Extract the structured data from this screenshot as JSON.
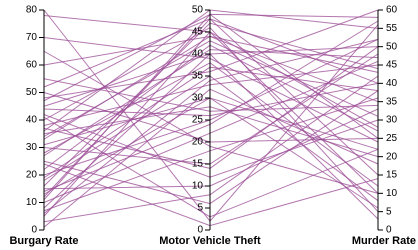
{
  "chart_data": {
    "type": "parallel",
    "color": "#9a4a94",
    "axes": [
      {
        "name": "Burgary Rate",
        "lim": [
          0,
          80
        ],
        "ticks": [
          0,
          10,
          20,
          30,
          40,
          50,
          60,
          70,
          80
        ]
      },
      {
        "name": "Motor Vehicle Theft",
        "lim": [
          0,
          50
        ],
        "ticks": [
          0,
          5,
          10,
          15,
          20,
          25,
          30,
          35,
          40,
          45,
          50
        ]
      },
      {
        "name": "Murder Rate",
        "lim": [
          0,
          60
        ],
        "ticks": [
          0,
          5,
          10,
          15,
          20,
          25,
          30,
          35,
          40,
          45,
          50,
          55,
          60
        ]
      }
    ],
    "records": [
      [
        80,
        2,
        56
      ],
      [
        78,
        45,
        10
      ],
      [
        52,
        48,
        40
      ],
      [
        50,
        20,
        25
      ],
      [
        47,
        49,
        58
      ],
      [
        45,
        40,
        50
      ],
      [
        42,
        12,
        30
      ],
      [
        40,
        46,
        5
      ],
      [
        38,
        33,
        45
      ],
      [
        36,
        50,
        55
      ],
      [
        35,
        28,
        20
      ],
      [
        33,
        44,
        35
      ],
      [
        30,
        15,
        48
      ],
      [
        28,
        38,
        12
      ],
      [
        25,
        6,
        38
      ],
      [
        22,
        42,
        27
      ],
      [
        20,
        25,
        52
      ],
      [
        18,
        35,
        8
      ],
      [
        16,
        47,
        44
      ],
      [
        15,
        10,
        33
      ],
      [
        13,
        30,
        22
      ],
      [
        12,
        48,
        15
      ],
      [
        10,
        22,
        46
      ],
      [
        8,
        40,
        3
      ],
      [
        7,
        18,
        36
      ],
      [
        5,
        45,
        28
      ],
      [
        3,
        8,
        42
      ],
      [
        1,
        32,
        18
      ],
      [
        48,
        36,
        60
      ],
      [
        44,
        26,
        40
      ],
      [
        41,
        3,
        22
      ],
      [
        37,
        14,
        50
      ],
      [
        34,
        43,
        31
      ],
      [
        31,
        30,
        6
      ],
      [
        27,
        41,
        47
      ],
      [
        24,
        1,
        14
      ],
      [
        19,
        37,
        38
      ],
      [
        14,
        24,
        57
      ],
      [
        11,
        49,
        25
      ],
      [
        6,
        34,
        52
      ],
      [
        55,
        27,
        34
      ],
      [
        60,
        44,
        43
      ],
      [
        70,
        39,
        24
      ],
      [
        65,
        19,
        10
      ]
    ]
  }
}
